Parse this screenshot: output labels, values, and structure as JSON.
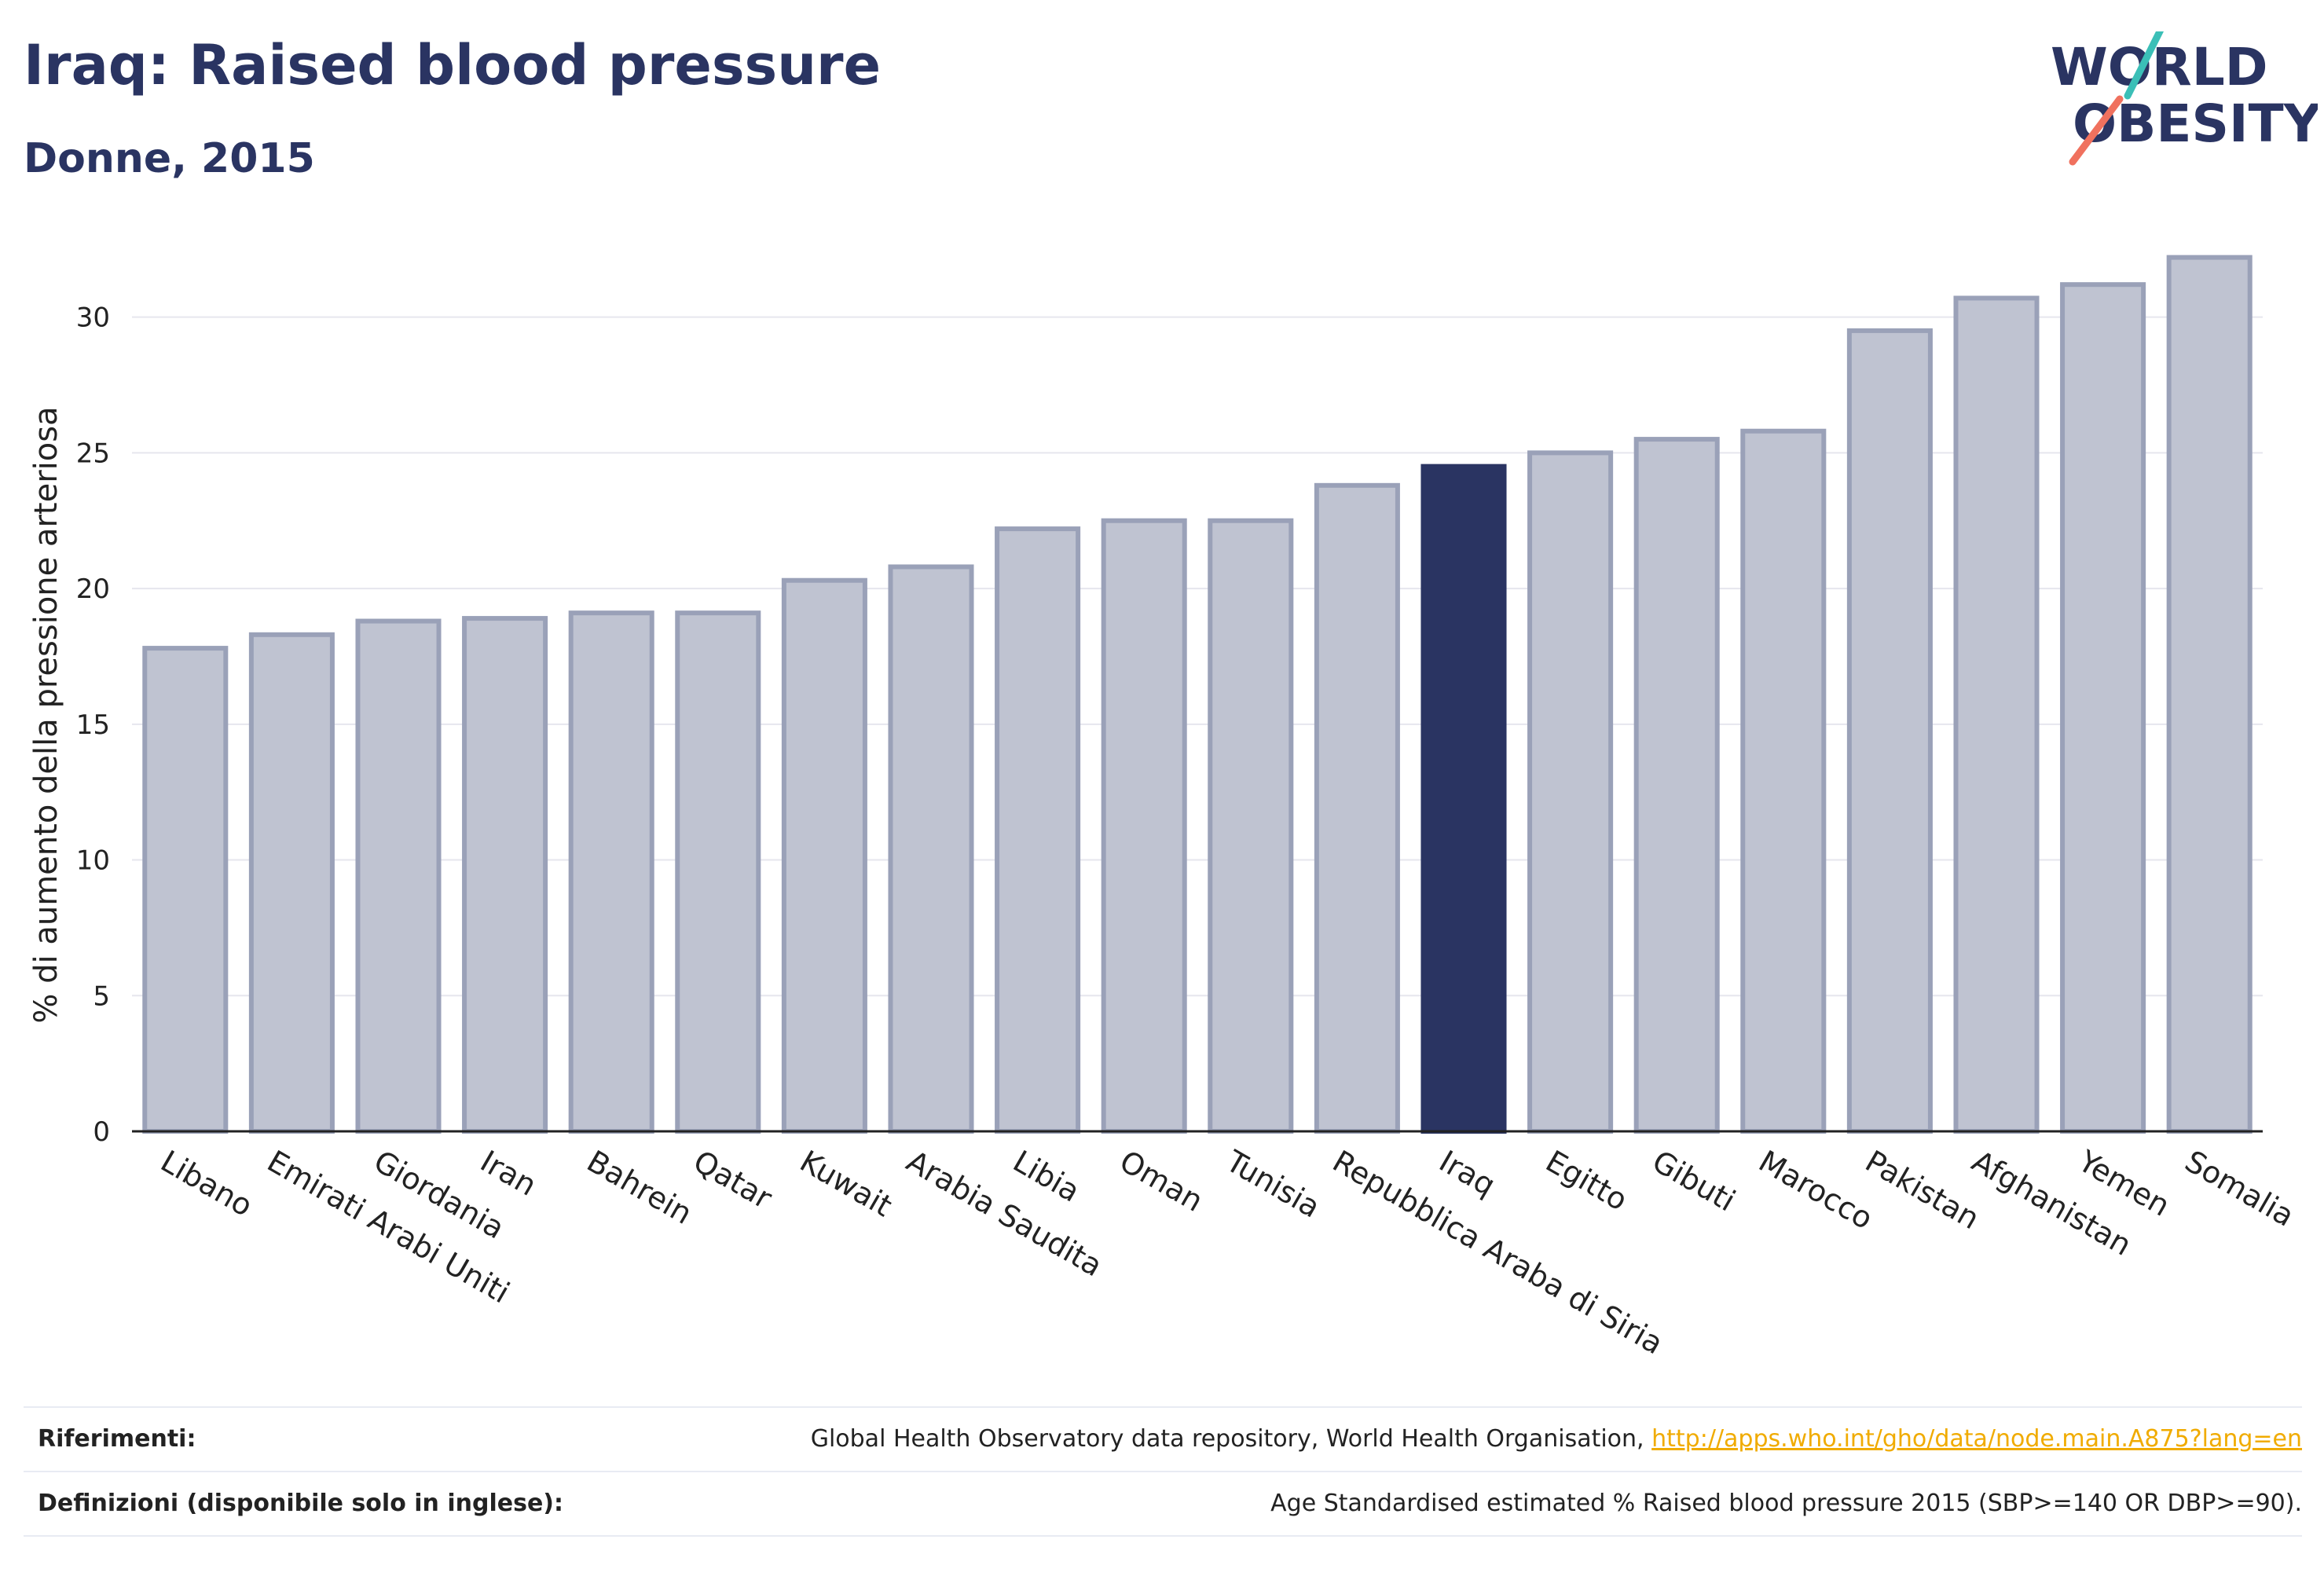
{
  "header": {
    "title": "Iraq: Raised blood pressure",
    "subtitle": "Donne, 2015"
  },
  "logo": {
    "line1": "WORLD",
    "line2": "OBESITY",
    "accent_teal": "#3bbfb7",
    "accent_coral": "#f0715e",
    "text_color": "#2a3462"
  },
  "colors": {
    "bar_default": "#bfc3d1",
    "bar_default_stroke": "#9aa1b8",
    "bar_highlight": "#2a3462",
    "grid": "#e6e6ee",
    "axis": "#222222"
  },
  "chart_data": {
    "type": "bar",
    "title": "Iraq: Raised blood pressure",
    "subtitle": "Donne, 2015",
    "xlabel": "",
    "ylabel": "% di aumento della pressione arteriosa",
    "ylim": [
      0,
      33
    ],
    "yticks": [
      0,
      5,
      10,
      15,
      20,
      25,
      30
    ],
    "grid": true,
    "highlight": "Iraq",
    "categories": [
      "Libano",
      "Emirati Arabi Uniti",
      "Giordania",
      "Iran",
      "Bahrein",
      "Qatar",
      "Kuwait",
      "Arabia Saudita",
      "Libia",
      "Oman",
      "Tunisia",
      "Repubblica Araba di Siria",
      "Iraq",
      "Egitto",
      "Gibuti",
      "Marocco",
      "Pakistan",
      "Afghanistan",
      "Yemen",
      "Somalia"
    ],
    "values": [
      17.8,
      18.3,
      18.8,
      18.9,
      19.1,
      19.1,
      20.3,
      20.8,
      22.2,
      22.5,
      22.5,
      23.8,
      24.5,
      25.0,
      25.5,
      25.8,
      29.5,
      30.7,
      31.2,
      32.2
    ]
  },
  "footer": {
    "references_label": "Riferimenti:",
    "references_text": "Global Health Observatory data repository, World Health Organisation,",
    "references_link": "http://apps.who.int/gho/data/node.main.A875?lang=en",
    "definitions_label": "Definizioni (disponibile solo in inglese):",
    "definitions_text": "Age Standardised estimated % Raised blood pressure 2015 (SBP>=140 OR DBP>=90)."
  }
}
